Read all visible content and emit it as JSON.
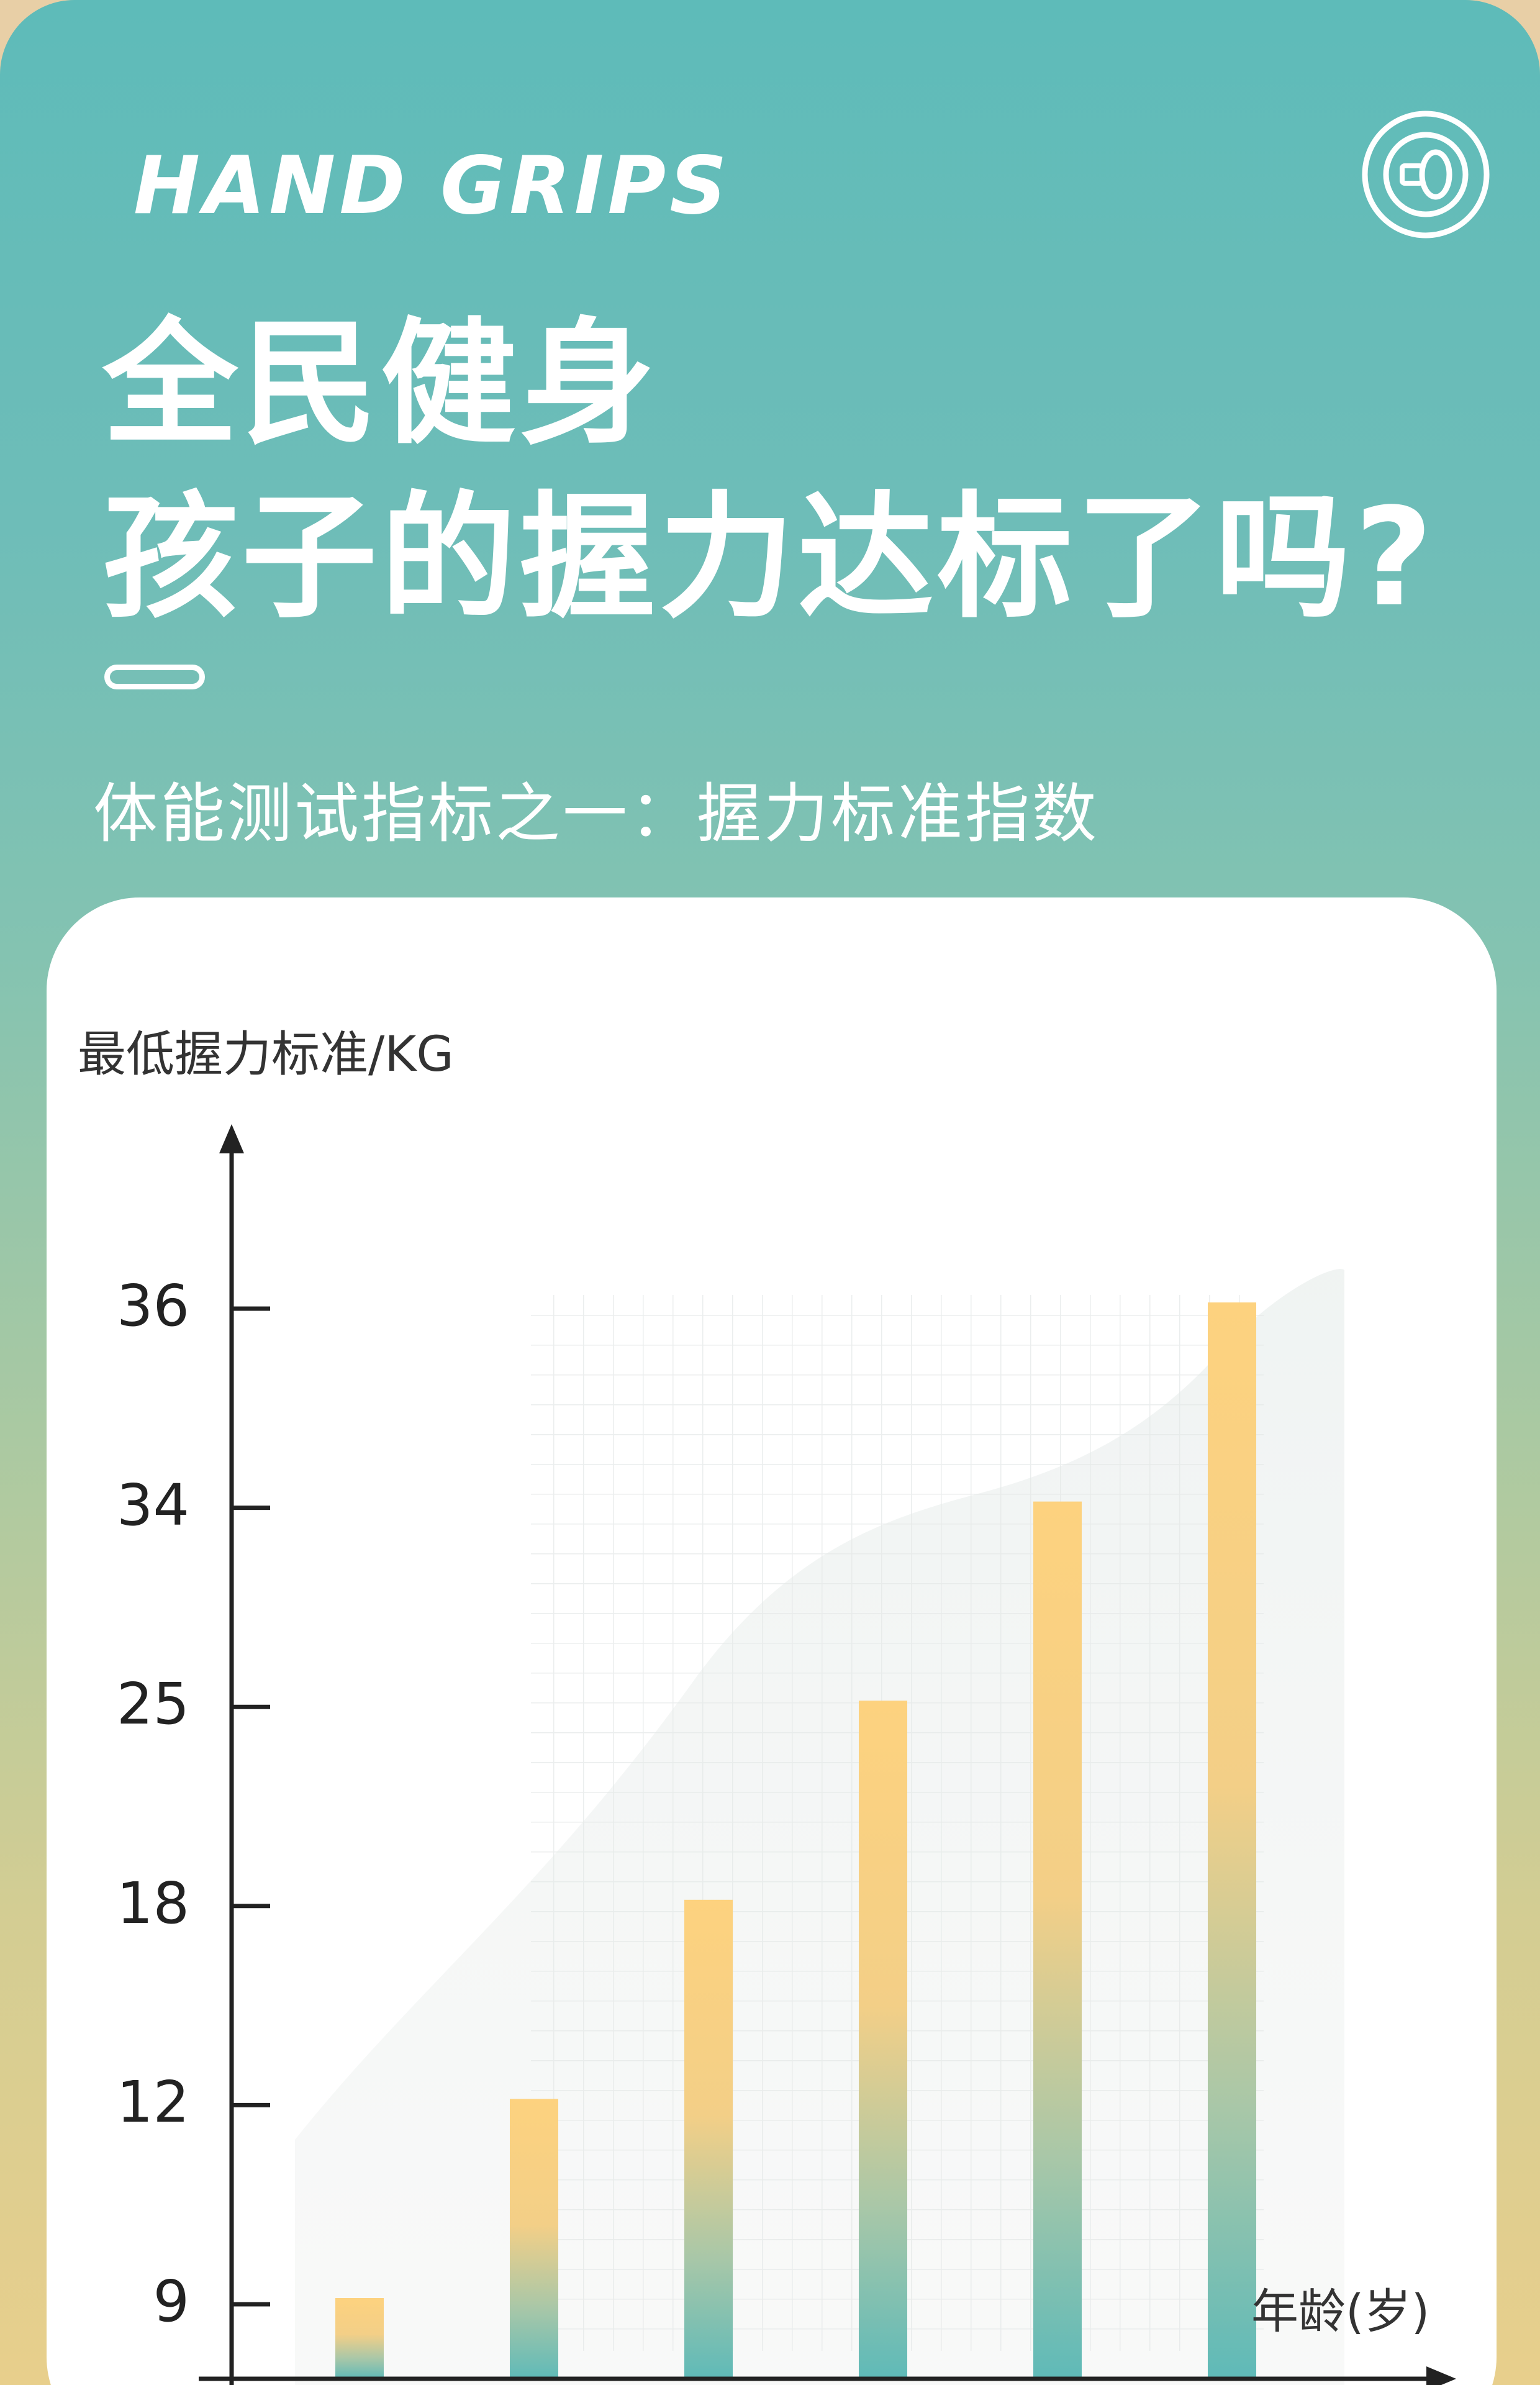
{
  "header": {
    "eyebrow": "HAND GRIPS",
    "title_line1": "全民健身",
    "title_line2": "孩子的握力达标了吗?",
    "subtitle": "体能测试指标之一：握力标准指数",
    "badge_icon": "hand-grip-dial-icon"
  },
  "colors": {
    "background_top": "#5ebbb9",
    "background_bottom": "#e8cf8c",
    "bar_top": "#fdd27f",
    "bar_bottom": "#5fbab8",
    "card": "#ffffff"
  },
  "chart_data": {
    "type": "bar",
    "ylabel": "最低握力标准/KG",
    "xlabel": "年龄(岁)",
    "y_ticks": [
      "9",
      "12",
      "18",
      "25",
      "34",
      "36"
    ],
    "values": [
      9,
      12,
      18,
      25,
      34,
      36
    ],
    "categories": [
      "",
      "",
      "",
      "",
      "",
      ""
    ],
    "y_scale": "categorical-ticks (labels evenly spaced, not linear)",
    "grid": false,
    "legend": "none"
  }
}
